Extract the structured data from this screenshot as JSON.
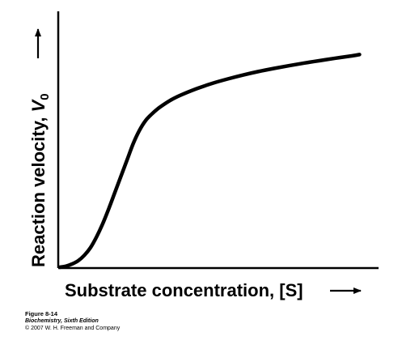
{
  "chart_data": {
    "type": "line",
    "title": "",
    "xlabel": "Substrate concentration, [S]",
    "ylabel_prefix": "Reaction velocity, ",
    "ylabel_symbol": "V",
    "ylabel_subscript": "0",
    "xlim": [
      0,
      100
    ],
    "ylim": [
      0,
      100
    ],
    "grid": false,
    "legend": "none",
    "line_color": "#000000",
    "series": [
      {
        "x": [
          0,
          2,
          4,
          6,
          8,
          10,
          12,
          14,
          16,
          18,
          20,
          22,
          24,
          26,
          28,
          30,
          32,
          34,
          36,
          38,
          40,
          45,
          50,
          55,
          60,
          65,
          70,
          75,
          80,
          85,
          90,
          95,
          98
        ],
        "values": [
          0,
          0.5,
          1.5,
          3,
          5.5,
          9,
          14,
          20,
          27,
          34.5,
          42,
          49.5,
          57,
          63,
          67.5,
          70.5,
          73,
          75,
          76.8,
          78.3,
          79.6,
          82.4,
          84.8,
          86.8,
          88.6,
          90.2,
          91.6,
          92.9,
          94.1,
          95.2,
          96.3,
          97.3,
          98
        ]
      }
    ]
  },
  "caption": {
    "figure": "Figure 8-14",
    "book": "Biochemistry, Sixth Edition",
    "copyright": "© 2007 W. H. Freeman and Company"
  }
}
